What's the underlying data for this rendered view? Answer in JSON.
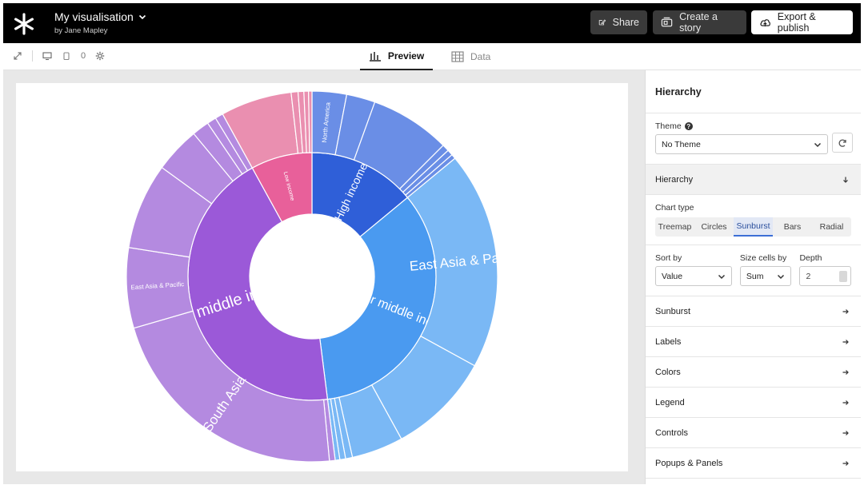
{
  "header": {
    "title": "My visualisation",
    "byline": "by Jane Mapley",
    "share_label": "Share",
    "story_label": "Create a story",
    "export_label": "Export & publish"
  },
  "toolbar": {
    "counter": "0"
  },
  "view_tabs": [
    {
      "label": "Preview",
      "active": true
    },
    {
      "label": "Data",
      "active": false
    }
  ],
  "panel": {
    "title": "Hierarchy",
    "theme_label": "Theme",
    "theme_value": "No Theme",
    "hierarchy_label": "Hierarchy",
    "chart_type_label": "Chart type",
    "chart_types": [
      "Treemap",
      "Circles",
      "Sunburst",
      "Bars",
      "Radial"
    ],
    "chart_type_selected": "Sunburst",
    "sort_by_label": "Sort by",
    "sort_by_value": "Value",
    "size_cells_label": "Size cells by",
    "size_cells_value": "Sum",
    "depth_label": "Depth",
    "depth_value": "2",
    "sections": [
      "Sunburst",
      "Labels",
      "Colors",
      "Legend",
      "Controls",
      "Popups & Panels"
    ]
  },
  "colors": {
    "accent": "#3c6ed6",
    "high_income": "#2f5fd8",
    "upper_middle_income": "#4a9af0",
    "lower_middle_income": "#9b59d8",
    "low_income": "#e8609a"
  },
  "chart_data": {
    "type": "sunburst",
    "inner": [
      {
        "name": "High income",
        "value": 14,
        "color": "#2f5fd8",
        "label_size": 14
      },
      {
        "name": "Upper middle income",
        "value": 34,
        "color": "#4a9af0",
        "label_size": 16
      },
      {
        "name": "Lower middle income",
        "value": 44,
        "color": "#9b59d8",
        "label_size": 20
      },
      {
        "name": "Low income",
        "value": 8,
        "color": "#e8609a",
        "label_size": 7
      }
    ],
    "outer": [
      {
        "parent": "High income",
        "name": "North America",
        "value": 3.0
      },
      {
        "parent": "High income",
        "name": "",
        "value": 2.5
      },
      {
        "parent": "High income",
        "name": "",
        "value": 7.0
      },
      {
        "parent": "High income",
        "name": "",
        "value": 0.6
      },
      {
        "parent": "High income",
        "name": "",
        "value": 0.5
      },
      {
        "parent": "High income",
        "name": "",
        "value": 0.4
      },
      {
        "parent": "Upper middle income",
        "name": "East Asia & Pacific",
        "value": 19.0
      },
      {
        "parent": "Upper middle income",
        "name": "",
        "value": 9.0
      },
      {
        "parent": "Upper middle income",
        "name": "",
        "value": 4.5
      },
      {
        "parent": "Upper middle income",
        "name": "",
        "value": 0.6
      },
      {
        "parent": "Upper middle income",
        "name": "",
        "value": 0.5
      },
      {
        "parent": "Upper middle income",
        "name": "",
        "value": 0.4
      },
      {
        "parent": "Lower middle income",
        "name": "",
        "value": 0.5
      },
      {
        "parent": "Lower middle income",
        "name": "South Asia",
        "value": 22.0
      },
      {
        "parent": "Lower middle income",
        "name": "East Asia & Pacific",
        "value": 7.0
      },
      {
        "parent": "Lower middle income",
        "name": "",
        "value": 7.5
      },
      {
        "parent": "Lower middle income",
        "name": "",
        "value": 4.0
      },
      {
        "parent": "Lower middle income",
        "name": "",
        "value": 1.5
      },
      {
        "parent": "Lower middle income",
        "name": "",
        "value": 0.8
      },
      {
        "parent": "Lower middle income",
        "name": "",
        "value": 0.7
      },
      {
        "parent": "Low income",
        "name": "",
        "value": 6.2
      },
      {
        "parent": "Low income",
        "name": "",
        "value": 0.6
      },
      {
        "parent": "Low income",
        "name": "",
        "value": 0.5
      },
      {
        "parent": "Low income",
        "name": "",
        "value": 0.4
      },
      {
        "parent": "Low income",
        "name": "",
        "value": 0.3
      }
    ]
  }
}
